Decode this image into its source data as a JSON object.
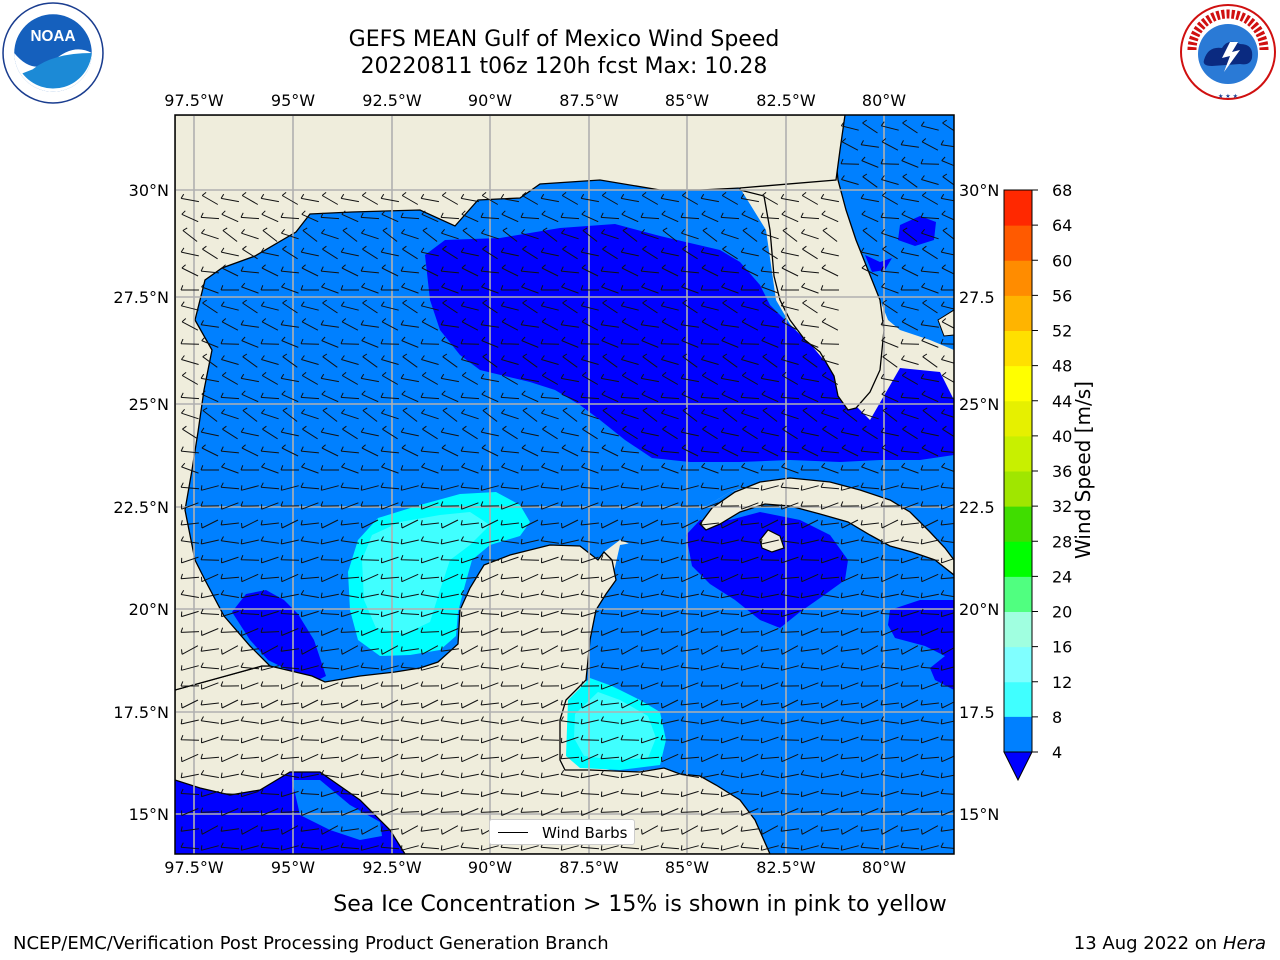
{
  "header": {
    "title_line1": "GEFS MEAN Gulf of Mexico Wind Speed",
    "title_line2": "20220811 t06z 120h fcst   Max: 10.28"
  },
  "map": {
    "lon_labels": [
      "97.5°W",
      "95°W",
      "92.5°W",
      "90°W",
      "87.5°W",
      "85°W",
      "82.5°W",
      "80°W"
    ],
    "lat_labels": [
      "30°N",
      "27.5°N",
      "25°N",
      "22.5°N",
      "20°N",
      "17.5°N",
      "15°N"
    ],
    "lat_labels_right": [
      "30°N",
      "27.5",
      "25°N",
      "22.5",
      "20°N",
      "17.5",
      "15°N"
    ],
    "legend_label": "Wind Barbs"
  },
  "colorbar": {
    "label": "Wind Speed [m/s]",
    "ticks": [
      "4",
      "8",
      "12",
      "16",
      "20",
      "24",
      "28",
      "32",
      "36",
      "40",
      "44",
      "48",
      "52",
      "56",
      "60",
      "64",
      "68"
    ],
    "colors": [
      "#0080ff",
      "#00ffff",
      "#40ffff",
      "#80ffff",
      "#a0ffe0",
      "#50ff80",
      "#00ff00",
      "#40dd00",
      "#a0e600",
      "#c8f000",
      "#e6f000",
      "#ffff00",
      "#ffe000",
      "#ffb400",
      "#ff8c00",
      "#ff5a00",
      "#ff2800",
      "#ff0000"
    ],
    "extend_color": "#0000ff"
  },
  "footer": {
    "subtitle": "Sea Ice Concentration > 15% is shown in pink to yellow",
    "credit": "NCEP/EMC/Verification Post Processing Product Generation Branch",
    "date": "13 Aug 2022 on",
    "machine": "Hera"
  },
  "logos": {
    "noaa_text": "NOAA",
    "nws_text": "NATIONAL WEATHER SERVICE"
  },
  "colors": {
    "land": "#efeddc",
    "wind_4_8": "#0080ff",
    "wind_below_4": "#0000ff",
    "wind_8_12": "#00ffff",
    "wind_12_16": "#40ffff"
  }
}
